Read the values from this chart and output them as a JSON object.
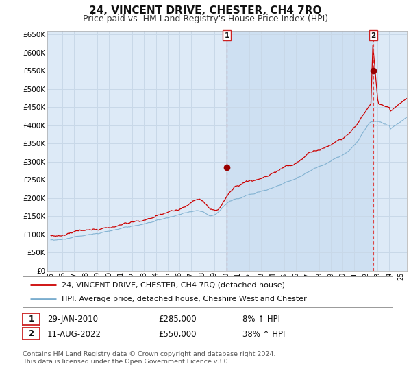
{
  "title": "24, VINCENT DRIVE, CHESTER, CH4 7RQ",
  "subtitle": "Price paid vs. HM Land Registry's House Price Index (HPI)",
  "title_fontsize": 11,
  "subtitle_fontsize": 9,
  "background_color": "#ffffff",
  "plot_bg_color": "#ddeaf7",
  "grid_color": "#c8d8e8",
  "ylim": [
    0,
    660000
  ],
  "yticks": [
    0,
    50000,
    100000,
    150000,
    200000,
    250000,
    300000,
    350000,
    400000,
    450000,
    500000,
    550000,
    600000,
    650000
  ],
  "xlim_start": 1994.7,
  "xlim_end": 2025.5,
  "xtick_years": [
    1995,
    1996,
    1997,
    1998,
    1999,
    2000,
    2001,
    2002,
    2003,
    2004,
    2005,
    2006,
    2007,
    2008,
    2009,
    2010,
    2011,
    2012,
    2013,
    2014,
    2015,
    2016,
    2017,
    2018,
    2019,
    2020,
    2021,
    2022,
    2023,
    2024,
    2025
  ],
  "sale1_x": 2010.08,
  "sale1_y": 285000,
  "sale1_label": "1",
  "sale2_x": 2022.61,
  "sale2_y": 550000,
  "sale2_label": "2",
  "red_line_color": "#cc0000",
  "blue_line_color": "#7aadce",
  "marker_color": "#990000",
  "dashed_line_color": "#dd4444",
  "legend_label_red": "24, VINCENT DRIVE, CHESTER, CH4 7RQ (detached house)",
  "legend_label_blue": "HPI: Average price, detached house, Cheshire West and Chester",
  "annotation1_label": "1",
  "annotation1_date": "29-JAN-2010",
  "annotation1_price": "£285,000",
  "annotation1_hpi": "8% ↑ HPI",
  "annotation2_label": "2",
  "annotation2_date": "11-AUG-2022",
  "annotation2_price": "£550,000",
  "annotation2_hpi": "38% ↑ HPI",
  "footer": "Contains HM Land Registry data © Crown copyright and database right 2024.\nThis data is licensed under the Open Government Licence v3.0.",
  "shaded_region_start": 2010.08,
  "shaded_region_end": 2022.61
}
